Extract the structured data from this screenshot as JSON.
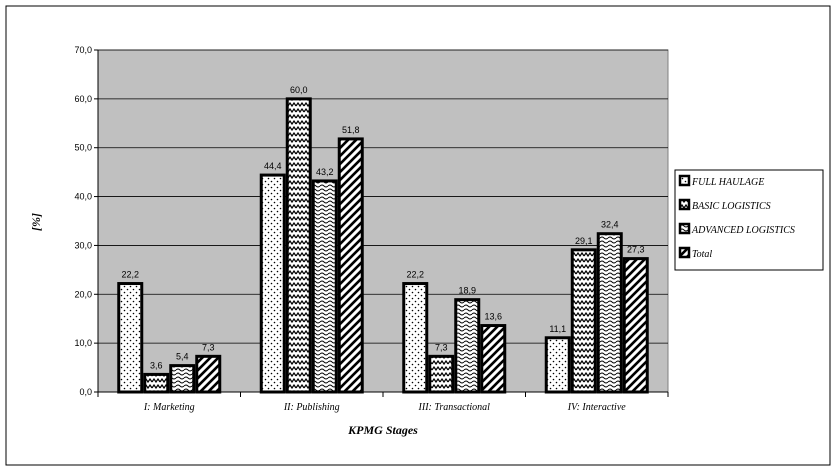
{
  "chart_data": {
    "type": "bar",
    "title": "",
    "xlabel": "KPMG Stages",
    "ylabel": "[%]",
    "ylim": [
      0,
      70
    ],
    "yticks": [
      "0,0",
      "10,0",
      "20,0",
      "30,0",
      "40,0",
      "50,0",
      "60,0",
      "70,0"
    ],
    "grid": true,
    "legend_position": "right",
    "plot_background": "#c0c0c0",
    "categories": [
      "I: Marketing",
      "II: Publishing",
      "III: Transactional",
      "IV: Interactive"
    ],
    "series": [
      {
        "name": "FULL HAULAGE",
        "values": [
          22.2,
          44.4,
          22.2,
          11.1
        ],
        "labels": [
          "22,2",
          "44,4",
          "22,2",
          "11,1"
        ],
        "pattern": "dots"
      },
      {
        "name": "BASIC LOGISTICS",
        "values": [
          3.6,
          60.0,
          7.3,
          29.1
        ],
        "labels": [
          "3,6",
          "60,0",
          "7,3",
          "29,1"
        ],
        "pattern": "zigzag"
      },
      {
        "name": "ADVANCED LOGISTICS",
        "values": [
          5.4,
          43.2,
          18.9,
          32.4
        ],
        "labels": [
          "5,4",
          "43,2",
          "18,9",
          "32,4"
        ],
        "pattern": "wave"
      },
      {
        "name": "Total",
        "values": [
          7.3,
          51.8,
          13.6,
          27.3
        ],
        "labels": [
          "7,3",
          "51,8",
          "13,6",
          "27,3"
        ],
        "pattern": "diagonal"
      }
    ]
  }
}
